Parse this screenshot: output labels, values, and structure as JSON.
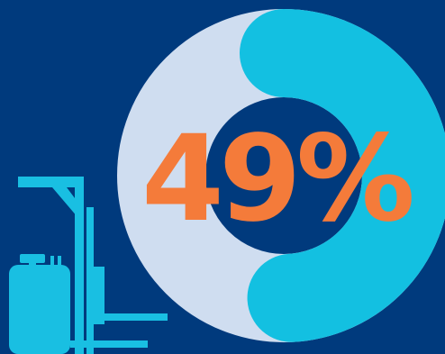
{
  "colors": {
    "background": "#003A7D",
    "ring_track": "#CFDDF0",
    "ring_fill": "#13C0E1",
    "hole": "#003A7D",
    "label": "#F47B3A",
    "icon": "#19BFE2"
  },
  "icon": "pallet-stacker-forklift-icon",
  "chart_data": {
    "type": "donut",
    "value": 49,
    "max": 100,
    "label": "49%",
    "start": "top",
    "direction": "clockwise",
    "end_caps": "rounded"
  }
}
